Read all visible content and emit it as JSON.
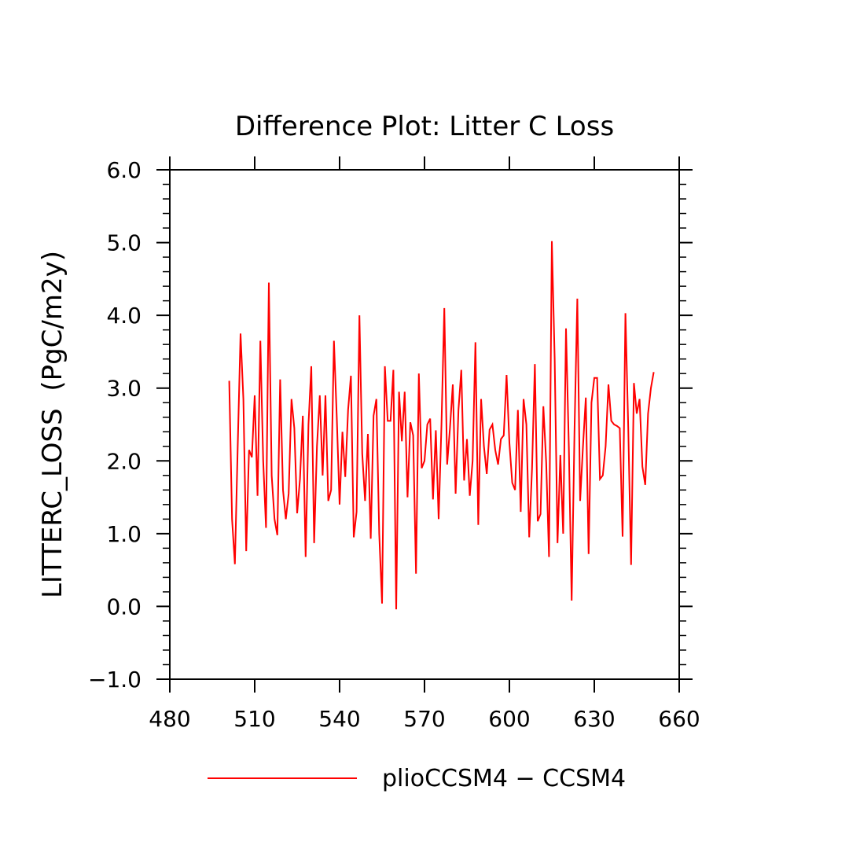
{
  "chart_data": {
    "type": "line",
    "title": "Difference Plot: Litter C Loss",
    "xlabel": "",
    "ylabel": "LITTERC_LOSS  (PgC/m2y)",
    "xlim": [
      480,
      660
    ],
    "ylim": [
      -1.0,
      6.0
    ],
    "xticks": [
      480,
      510,
      540,
      570,
      600,
      630,
      660
    ],
    "xtick_labels": [
      "480",
      "510",
      "540",
      "570",
      "600",
      "630",
      "660"
    ],
    "yticks": [
      -1.0,
      0.0,
      1.0,
      2.0,
      3.0,
      4.0,
      5.0,
      6.0
    ],
    "ytick_labels": [
      "−1.0",
      "0.0",
      "1.0",
      "2.0",
      "3.0",
      "4.0",
      "5.0",
      "6.0"
    ],
    "grid": false,
    "legend_position": "bottom-center",
    "series": [
      {
        "name": "plioCCSM4 − CCSM4",
        "color": "#ff0000",
        "x_start": 501,
        "x_step": 1,
        "values": [
          3.1,
          1.2,
          0.58,
          2.2,
          3.75,
          2.85,
          0.76,
          2.15,
          2.05,
          2.9,
          1.52,
          3.65,
          2.0,
          1.08,
          4.45,
          1.8,
          1.2,
          0.98,
          3.12,
          1.6,
          1.2,
          1.55,
          2.85,
          2.45,
          1.28,
          1.75,
          2.62,
          0.68,
          2.5,
          3.3,
          0.87,
          2.2,
          2.9,
          1.8,
          2.9,
          1.45,
          1.6,
          3.65,
          2.6,
          1.4,
          2.4,
          1.78,
          2.7,
          3.17,
          0.95,
          1.3,
          4.0,
          2.1,
          1.45,
          2.37,
          0.93,
          2.62,
          2.85,
          1.0,
          0.04,
          3.3,
          2.55,
          2.55,
          3.25,
          -0.04,
          2.95,
          2.27,
          2.95,
          1.5,
          2.53,
          2.35,
          0.45,
          3.2,
          1.9,
          2.0,
          2.5,
          2.58,
          1.47,
          2.42,
          1.2,
          2.5,
          4.1,
          1.95,
          2.45,
          3.05,
          1.55,
          2.7,
          3.25,
          1.73,
          2.3,
          1.52,
          2.0,
          3.63,
          1.12,
          2.85,
          2.2,
          1.82,
          2.43,
          2.5,
          2.15,
          1.95,
          2.3,
          2.35,
          3.18,
          2.25,
          1.7,
          1.6,
          2.7,
          1.3,
          2.85,
          2.5,
          0.95,
          1.9,
          3.33,
          1.17,
          1.27,
          2.75,
          1.98,
          0.68,
          5.02,
          3.4,
          0.87,
          2.08,
          1.0,
          3.82,
          2.2,
          0.08,
          2.4,
          4.23,
          1.45,
          2.2,
          2.87,
          0.72,
          2.8,
          3.14,
          3.14,
          1.75,
          1.8,
          2.2,
          3.05,
          2.55,
          2.5,
          2.48,
          2.45,
          0.96,
          4.03,
          2.45,
          0.57,
          3.07,
          2.65,
          2.85,
          1.92,
          1.67,
          2.65,
          3.0,
          3.22
        ]
      }
    ]
  }
}
